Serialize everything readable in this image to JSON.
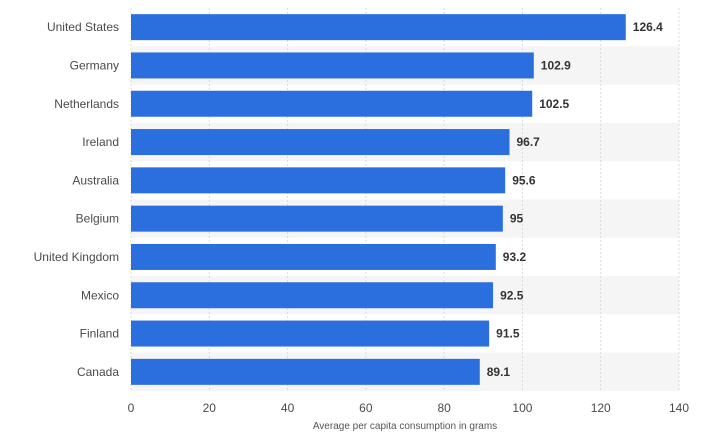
{
  "chart_data": {
    "type": "bar",
    "orientation": "horizontal",
    "categories": [
      "United States",
      "Germany",
      "Netherlands",
      "Ireland",
      "Australia",
      "Belgium",
      "United Kingdom",
      "Mexico",
      "Finland",
      "Canada"
    ],
    "values": [
      126.4,
      102.9,
      102.5,
      96.7,
      95.6,
      95,
      93.2,
      92.5,
      91.5,
      89.1
    ],
    "value_labels": [
      "126.4",
      "102.9",
      "102.5",
      "96.7",
      "95.6",
      "95",
      "93.2",
      "92.5",
      "91.5",
      "89.1"
    ],
    "xlabel": "Average per capita consumption in grams",
    "ylabel": "",
    "xlim": [
      0,
      140
    ],
    "x_ticks": [
      "0",
      "20",
      "40",
      "60",
      "80",
      "100",
      "120",
      "140"
    ],
    "bar_color": "#2b6fdf",
    "grid": true,
    "legend": "none"
  }
}
